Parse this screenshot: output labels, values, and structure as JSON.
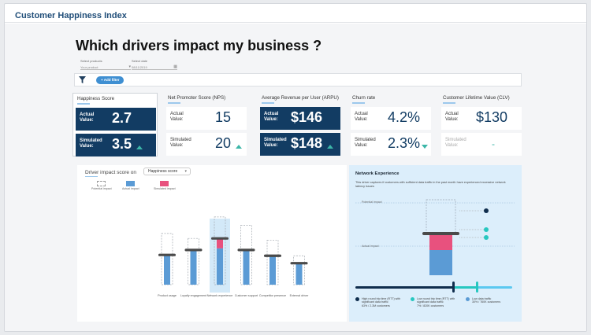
{
  "app": {
    "title": "Customer Happiness Index"
  },
  "page": {
    "title": "Which drivers impact my business ?"
  },
  "selectors": [
    {
      "label": "Select products",
      "value": "Your product"
    },
    {
      "label": "Select date",
      "value": "08/11/2019"
    }
  ],
  "filter": {
    "add_label": "Add filter"
  },
  "kpis": [
    {
      "title": "Happiness Score",
      "actual_label": "Actual Value:",
      "actual": "2.7",
      "simulated_label": "Simulated Value:",
      "simulated": "3.5",
      "trend": "up"
    },
    {
      "title": "Net Promoter Score (NPS)",
      "actual_label": "Actual Value:",
      "actual": "15",
      "simulated_label": "Simulated Value:",
      "simulated": "20",
      "trend": "up"
    },
    {
      "title": "Average Revenue per User (ARPU)",
      "actual_label": "Actual Value:",
      "actual": "$146",
      "simulated_label": "Simulated Value:",
      "simulated": "$148",
      "trend": "up"
    },
    {
      "title": "Churn rate",
      "actual_label": "Actual Value:",
      "actual": "4.2%",
      "simulated_label": "Simulated Value:",
      "simulated": "2.3%",
      "trend": "down"
    },
    {
      "title": "Customer Lifetime Value (CLV)",
      "actual_label": "Actual Value:",
      "actual": "$130",
      "simulated_label": "Simulated Value:",
      "simulated": "-",
      "trend": "none"
    }
  ],
  "driver_chart": {
    "label": "Driver impact score on",
    "dropdown_value": "Happiness score",
    "legend": [
      {
        "label": "Potential impact",
        "color": "#ffffff"
      },
      {
        "label": "Actual impact",
        "color": "#5b9bd5"
      },
      {
        "label": "Simulated impact",
        "color": "#e8517e"
      }
    ]
  },
  "chart_data": {
    "type": "bar",
    "categories": [
      "Product usage",
      "Loyalty engagement",
      "Network experience",
      "Customer support",
      "Competitor presence",
      "External driver"
    ],
    "actual": [
      36,
      42,
      44,
      42,
      35,
      26
    ],
    "simulated": [
      0,
      0,
      12,
      0,
      0,
      0
    ],
    "potential": [
      62,
      56,
      82,
      72,
      54,
      35
    ],
    "marker": [
      36,
      42,
      56,
      42,
      35,
      26
    ],
    "highlighted": "Network experience",
    "ylim": [
      0,
      100
    ]
  },
  "network": {
    "title": "Network Experience",
    "description": "This driver captures if customers with sufficient data traffic in the past month have experienced excessive network latency issues",
    "potential_label": "Potential impact",
    "actual_label": "Actual impact",
    "segments": [
      {
        "label": "High round trip time (RTT) with significant data traffic",
        "detail": "63% / 2.3M customers",
        "color": "#0f2d4d"
      },
      {
        "label": "Low round trip time (RTT) with significant data traffic",
        "detail": "7% / 820K customers",
        "color": "#27c7c0"
      },
      {
        "label": "Low data traffic",
        "detail": "30% / 760K customers",
        "color": "#5b9bd5"
      }
    ]
  }
}
